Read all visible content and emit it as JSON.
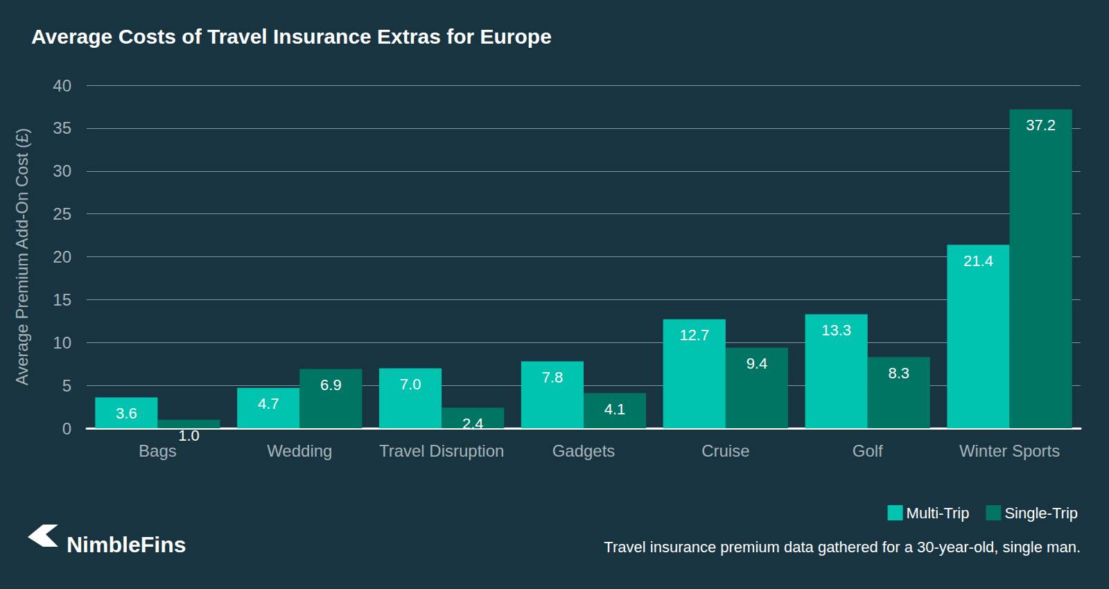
{
  "chart_data": {
    "type": "bar",
    "title": "Average Costs of Travel Insurance Extras for Europe",
    "y_label": "Average Premium Add-On Cost (£)",
    "categories": [
      "Bags",
      "Wedding",
      "Travel Disruption",
      "Gadgets",
      "Cruise",
      "Golf",
      "Winter Sports"
    ],
    "series": [
      {
        "name": "Multi-Trip",
        "color": "#00c4b0",
        "values": [
          3.6,
          4.7,
          7.0,
          7.8,
          12.7,
          13.3,
          21.4
        ],
        "value_labels": [
          "3.6",
          "4.7",
          "7.0",
          "7.8",
          "12.7",
          "13.3",
          "21.4"
        ]
      },
      {
        "name": "Single-Trip",
        "color": "#007563",
        "values": [
          1.0,
          6.9,
          2.4,
          4.1,
          9.4,
          8.3,
          37.2
        ],
        "value_labels": [
          "1.0",
          "6.9",
          "2.4",
          "4.1",
          "9.4",
          "8.3",
          "37.2"
        ]
      }
    ],
    "ylim": [
      0,
      40
    ],
    "yticks": [
      0,
      5,
      10,
      15,
      20,
      25,
      30,
      35,
      40
    ],
    "grid": true,
    "legend": "lower right",
    "data_labels": true,
    "footnote": "Travel insurance premium data gathered for a 30-year-old, single man.",
    "brand": "NimbleFins"
  }
}
